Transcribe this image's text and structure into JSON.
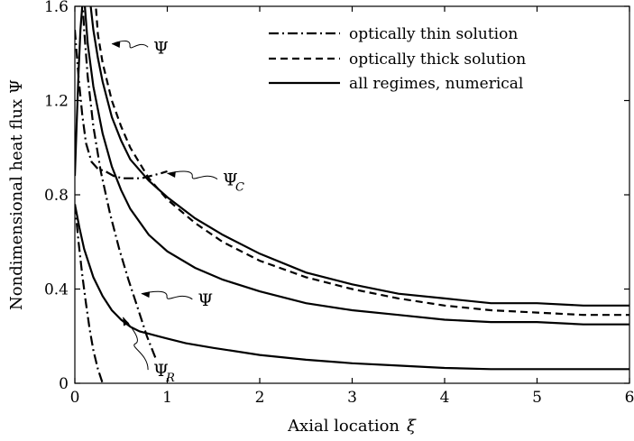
{
  "chart_data": {
    "type": "line",
    "xlabel": "Axial location",
    "xlabel_symbol": "ξ",
    "ylabel": "Nondimensional heat flux",
    "ylabel_symbol": "Ψ",
    "xlim": [
      0,
      6
    ],
    "ylim": [
      0,
      1.6
    ],
    "x_ticks": [
      "0",
      "1",
      "2",
      "3",
      "4",
      "5",
      "6"
    ],
    "y_ticks": [
      "0",
      "0.4",
      "0.8",
      "1.2",
      "1.6"
    ],
    "grid": false,
    "legend_position": "top-right",
    "legend": [
      {
        "label": "optically thin solution",
        "style": "dashdot"
      },
      {
        "label": "optically thick solution",
        "style": "dashed"
      },
      {
        "label": "all regimes, numerical",
        "style": "solid"
      }
    ],
    "annotations": [
      {
        "text": "Ψ",
        "subscript": "",
        "x": 0.85,
        "y": 1.4,
        "points_to": [
          0.4,
          1.44
        ]
      },
      {
        "text": "Ψ",
        "subscript": "C",
        "x": 1.6,
        "y": 0.84,
        "points_to": [
          1.0,
          0.89
        ]
      },
      {
        "text": "Ψ",
        "subscript": "",
        "x": 1.33,
        "y": 0.33,
        "points_to": [
          0.72,
          0.38
        ]
      },
      {
        "text": "Ψ",
        "subscript": "R",
        "x": 0.85,
        "y": 0.03,
        "points_to": [
          0.52,
          0.28
        ]
      }
    ],
    "series": [
      {
        "style": "dashdot",
        "x": [
          0.08,
          0.1,
          0.14,
          0.2,
          0.28,
          0.38,
          0.48,
          0.58,
          0.68,
          0.78,
          0.88
        ],
        "values": [
          1.64,
          1.5,
          1.3,
          1.09,
          0.9,
          0.72,
          0.57,
          0.44,
          0.32,
          0.2,
          0.1
        ]
      },
      {
        "style": "dashdot",
        "x": [
          0.0,
          0.04,
          0.08,
          0.12,
          0.16,
          0.2,
          0.25,
          0.3
        ],
        "values": [
          0.76,
          0.6,
          0.46,
          0.34,
          0.23,
          0.14,
          0.06,
          0.0
        ]
      },
      {
        "style": "dashdot",
        "x": [
          0.0,
          0.04,
          0.08,
          0.12,
          0.18,
          0.25,
          0.33,
          0.42,
          0.52,
          0.62,
          0.72,
          0.82,
          0.92,
          1.0
        ],
        "values": [
          1.5,
          1.3,
          1.14,
          1.02,
          0.94,
          0.91,
          0.9,
          0.88,
          0.87,
          0.87,
          0.87,
          0.88,
          0.89,
          0.9
        ]
      },
      {
        "style": "dashed",
        "x": [
          0.22,
          0.25,
          0.3,
          0.4,
          0.5,
          0.6,
          0.8,
          1.0,
          1.3,
          1.6,
          2.0,
          2.5,
          3.0,
          3.5,
          4.0,
          4.5,
          5.0,
          5.5,
          6.0
        ],
        "values": [
          1.64,
          1.48,
          1.36,
          1.2,
          1.09,
          1.0,
          0.87,
          0.78,
          0.68,
          0.6,
          0.52,
          0.45,
          0.4,
          0.36,
          0.33,
          0.31,
          0.3,
          0.29,
          0.29
        ]
      },
      {
        "style": "solid",
        "x": [
          0.16,
          0.2,
          0.25,
          0.3,
          0.4,
          0.5,
          0.6,
          0.8,
          1.0,
          1.3,
          1.6,
          2.0,
          2.5,
          3.0,
          3.5,
          4.0,
          4.5,
          5.0,
          5.5,
          6.0
        ],
        "values": [
          1.64,
          1.5,
          1.38,
          1.28,
          1.13,
          1.03,
          0.95,
          0.86,
          0.79,
          0.7,
          0.63,
          0.55,
          0.47,
          0.42,
          0.38,
          0.36,
          0.34,
          0.34,
          0.33,
          0.33
        ]
      },
      {
        "style": "solid",
        "x": [
          0.1,
          0.14,
          0.2,
          0.3,
          0.4,
          0.5,
          0.6,
          0.8,
          1.0,
          1.3,
          1.6,
          2.0,
          2.5,
          3.0,
          3.5,
          4.0,
          4.5,
          5.0,
          5.5,
          6.0
        ],
        "values": [
          1.64,
          1.44,
          1.26,
          1.06,
          0.92,
          0.82,
          0.74,
          0.63,
          0.56,
          0.49,
          0.44,
          0.39,
          0.34,
          0.31,
          0.29,
          0.27,
          0.26,
          0.26,
          0.25,
          0.25
        ]
      },
      {
        "style": "solid",
        "x": [
          0.0,
          0.05,
          0.1,
          0.2,
          0.3,
          0.4,
          0.5,
          0.6,
          0.7,
          0.8,
          0.9,
          1.0,
          1.2,
          1.5,
          2.0,
          2.5,
          3.0,
          3.5,
          4.0,
          4.5,
          5.0,
          5.5,
          6.0
        ],
        "values": [
          0.76,
          0.66,
          0.57,
          0.45,
          0.37,
          0.31,
          0.27,
          0.24,
          0.22,
          0.21,
          0.2,
          0.19,
          0.17,
          0.15,
          0.12,
          0.1,
          0.085,
          0.075,
          0.065,
          0.06,
          0.06,
          0.06,
          0.06
        ]
      },
      {
        "style": "solid",
        "x": [
          0.0,
          0.02,
          0.04,
          0.06,
          0.08,
          0.1
        ],
        "values": [
          0.88,
          1.1,
          1.32,
          1.5,
          1.6,
          1.64
        ]
      }
    ]
  }
}
